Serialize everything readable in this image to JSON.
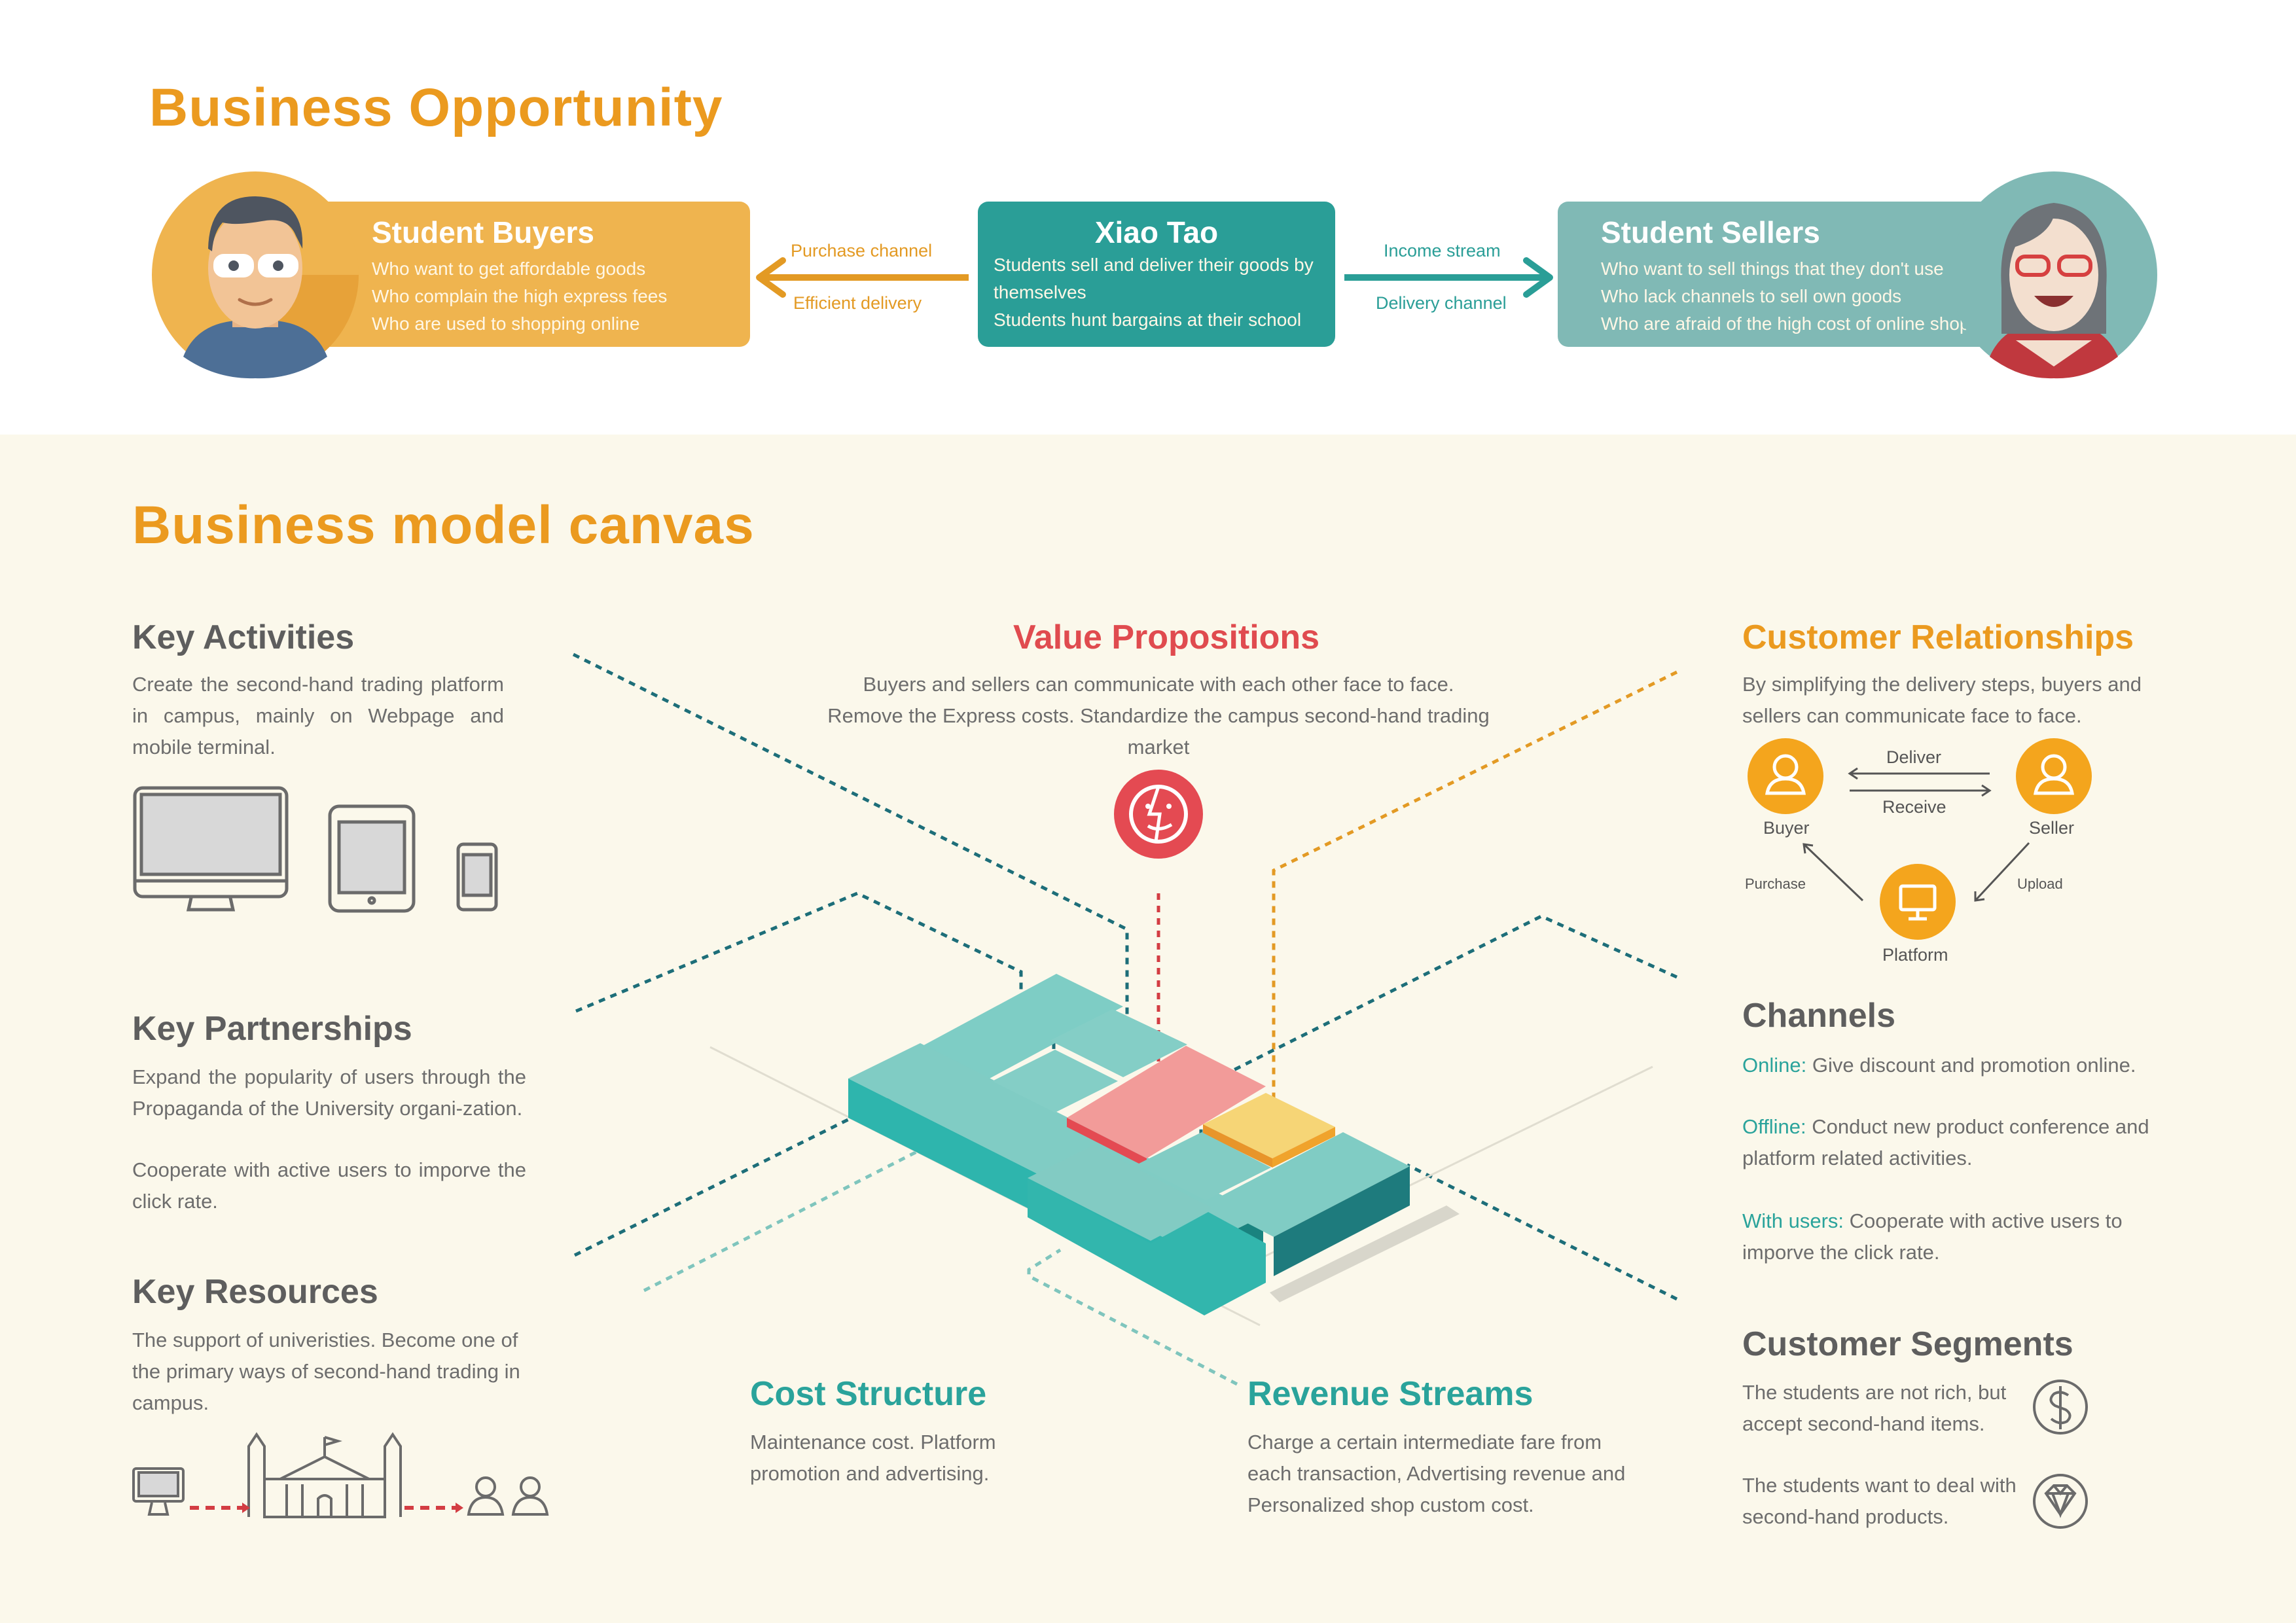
{
  "opportunity": {
    "title": "Business Opportunity",
    "buyers": {
      "title": "Student Buyers",
      "lines": [
        "Who want to get affordable goods",
        "Who complain the high express fees",
        "Who are used to shopping online"
      ]
    },
    "center": {
      "title": "Xiao Tao",
      "lines": [
        "Students sell and deliver their goods by themselves",
        "Students hunt bargains at their school"
      ]
    },
    "sellers": {
      "title": "Student Sellers",
      "lines": [
        "Who want to sell things that they don't use",
        "Who lack channels to sell own goods",
        "Who are afraid of the high cost of online shop"
      ]
    },
    "left_arrow": {
      "top": "Purchase channel",
      "bottom": "Efficient delivery"
    },
    "right_arrow": {
      "top": "Income stream",
      "bottom": "Delivery channel"
    }
  },
  "canvas": {
    "title": "Business model canvas",
    "key_activities": {
      "title": "Key Activities",
      "text": "Create the second-hand trading platform in campus, mainly on Webpage and mobile terminal."
    },
    "key_partnerships": {
      "title": "Key Partnerships",
      "text1": "Expand the popularity of users through the Propaganda of the University organi-zation.",
      "text2": "Cooperate with active users to imporve the click rate."
    },
    "key_resources": {
      "title": "Key Resources",
      "text": "The support of univeristies. Become one of the primary ways of second-hand trading in campus."
    },
    "value_propositions": {
      "title": "Value Propositions",
      "line1": "Buyers and sellers can communicate with each other face to face.",
      "line2": "Remove the Express costs. Standardize the campus second-hand trading market"
    },
    "customer_relationships": {
      "title": "Customer Relationships",
      "text": "By simplifying the delivery steps, buyers and sellers can communicate face to face.",
      "diagram": {
        "buyer": "Buyer",
        "seller": "Seller",
        "platform": "Platform",
        "deliver": "Deliver",
        "receive": "Receive",
        "purchase": "Purchase",
        "upload": "Upload"
      }
    },
    "channels": {
      "title": "Channels",
      "items": [
        {
          "label": "Online:",
          "text": "Give discount and promotion online."
        },
        {
          "label": "Offline:",
          "text": "Conduct new product conference and platform related activities."
        },
        {
          "label": "With users:",
          "text": "Cooperate with active users to imporve the click rate."
        }
      ]
    },
    "customer_segments": {
      "title": "Customer Segments",
      "item1": "The students are not rich, but accept second-hand items.",
      "item2": "The students want to deal with second-hand products."
    },
    "cost_structure": {
      "title": "Cost Structure",
      "text": "Maintenance cost. Platform promotion and advertising."
    },
    "revenue_streams": {
      "title": "Revenue Streams",
      "text": "Charge a certain intermediate fare from each transaction, Advertising revenue and Personalized shop custom cost."
    }
  },
  "colors": {
    "orange": "#eb9a1f",
    "teal": "#2aa39b",
    "red": "#e04b4f",
    "sellerTeal": "#80b9b5",
    "buyerYellow": "#efb44f",
    "cream": "#fbf8eb"
  },
  "icons": [
    "buyer-avatar-icon",
    "seller-avatar-icon",
    "smiley-face-icon",
    "monitor-icon",
    "tablet-icon",
    "phone-icon",
    "university-building-icon",
    "users-icon",
    "dollar-icon",
    "diamond-icon",
    "person-icon"
  ]
}
